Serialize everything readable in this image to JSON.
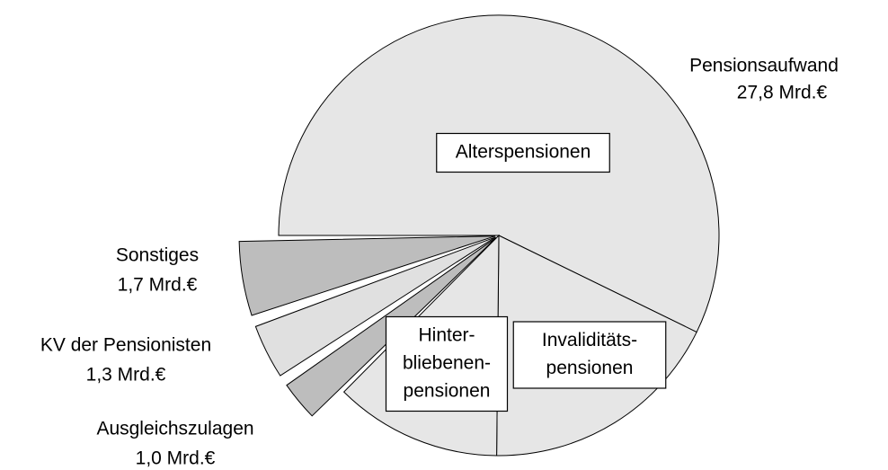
{
  "chart_data": {
    "type": "pie",
    "categories": [
      [
        "Alterspensionen"
      ],
      [
        "Invaliditäts-",
        "pensionen"
      ],
      [
        "Hinter-",
        "bliebenen-",
        "pensionen"
      ],
      [
        "Ausgleichszulagen"
      ],
      [
        "KV der Pensionisten"
      ],
      [
        "Sonstiges"
      ]
    ],
    "values": [
      18.2,
      5.7,
      3.9,
      1.0,
      1.3,
      1.7
    ],
    "value_labels": [
      null,
      null,
      null,
      "1,0 Mrd.€",
      "1,3 Mrd.€",
      "1,7 Mrd.€"
    ],
    "colors": [
      "#e6e6e6",
      "#e6e6e6",
      "#e6e6e6",
      "#bdbdbd",
      "#e0e0e0",
      "#bdbdbd"
    ],
    "exploded": [
      false,
      false,
      false,
      true,
      true,
      true
    ],
    "group": {
      "name": "Pensionsaufwand",
      "value": 27.8,
      "value_label": "27,8 Mrd.€"
    }
  }
}
